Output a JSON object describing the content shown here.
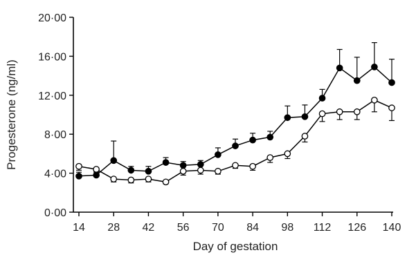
{
  "chart_data": {
    "type": "line",
    "title": "",
    "xlabel": "Day of gestation",
    "ylabel": "Progesterone (ng/ml)",
    "xlim": [
      14,
      140
    ],
    "ylim": [
      0,
      20
    ],
    "x_ticks": [
      14,
      28,
      42,
      56,
      70,
      84,
      98,
      112,
      126,
      140
    ],
    "x_tick_labels": [
      "14",
      "28",
      "42",
      "56",
      "70",
      "84",
      "98",
      "112",
      "126",
      "140"
    ],
    "y_ticks": [
      0,
      4,
      8,
      12,
      16,
      20
    ],
    "y_tick_labels": [
      "0·00",
      "4·00",
      "8·00",
      "12·00",
      "16·00",
      "20·00"
    ],
    "grid": false,
    "legend": "none",
    "series": [
      {
        "marker": "filled-circle",
        "color": "#000000",
        "x": [
          14,
          21,
          28,
          35,
          42,
          49,
          56,
          63,
          70,
          77,
          84,
          91,
          98,
          105,
          112,
          119,
          126,
          133,
          140
        ],
        "values": [
          3.7,
          3.8,
          5.3,
          4.3,
          4.2,
          5.1,
          4.8,
          4.9,
          5.9,
          6.8,
          7.4,
          7.7,
          9.7,
          9.8,
          11.7,
          14.8,
          13.5,
          14.9,
          13.3
        ],
        "error": [
          0.4,
          0.4,
          2.0,
          0.4,
          0.5,
          0.5,
          0.4,
          0.4,
          0.7,
          0.7,
          0.7,
          0.6,
          1.2,
          1.2,
          0.9,
          1.9,
          2.4,
          2.5,
          2.4
        ]
      },
      {
        "marker": "open-circle",
        "color": "#000000",
        "x": [
          14,
          21,
          28,
          35,
          42,
          49,
          56,
          63,
          70,
          77,
          84,
          91,
          98,
          105,
          112,
          119,
          126,
          133,
          140
        ],
        "values": [
          4.7,
          4.4,
          3.4,
          3.3,
          3.4,
          3.1,
          4.2,
          4.3,
          4.2,
          4.8,
          4.7,
          5.6,
          6.0,
          7.8,
          10.1,
          10.3,
          10.3,
          11.5,
          10.7
        ],
        "error": [
          0.4,
          0.3,
          0.3,
          0.3,
          0.3,
          0.2,
          0.4,
          0.4,
          0.3,
          0.3,
          0.4,
          0.5,
          0.5,
          0.6,
          0.8,
          0.8,
          0.8,
          1.2,
          1.3
        ]
      }
    ]
  }
}
